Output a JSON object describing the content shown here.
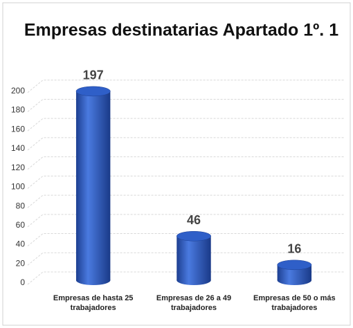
{
  "chart_data": {
    "type": "bar",
    "title": "Empresas destinatarias Apartado 1º. 1",
    "categories": [
      "Empresas de hasta 25 trabajadores",
      "Empresas de 26 a 49 trabajadores",
      "Empresas de 50 o más trabajadores"
    ],
    "values": [
      197,
      46,
      16
    ],
    "color": "#2f5fc8",
    "ylim": [
      0,
      220
    ],
    "yticks": [
      0,
      20,
      40,
      60,
      80,
      100,
      120,
      140,
      160,
      180,
      200
    ],
    "grid": true
  }
}
